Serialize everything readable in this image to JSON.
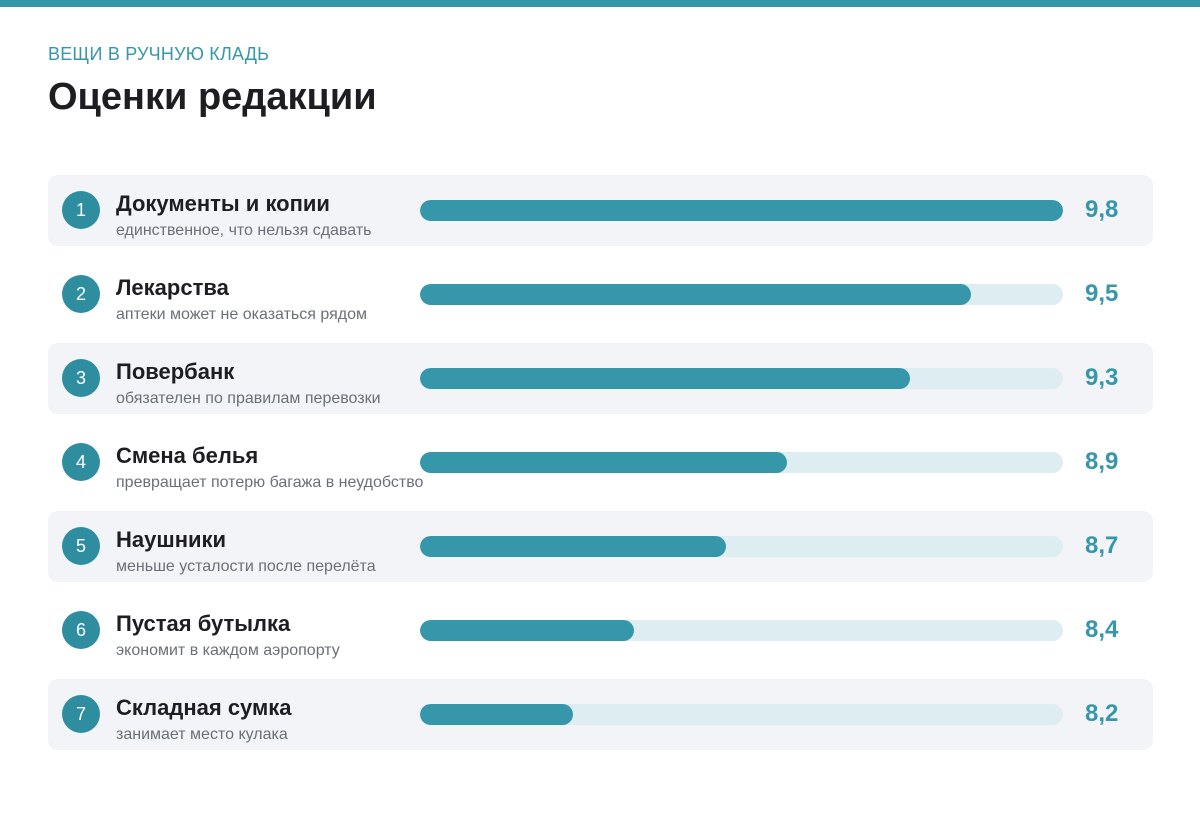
{
  "header": {
    "eyebrow": "ВЕЩИ В РУЧНУЮ КЛАДЬ",
    "title": "Оценки редакции"
  },
  "colors": {
    "accent": "#3597a9",
    "track": "#deedf1",
    "row_shade": "#f3f4f7",
    "badge": "#2e8ea0"
  },
  "chart_data": {
    "type": "bar",
    "orientation": "horizontal",
    "title": "Оценки редакции",
    "subtitle": "ВЕЩИ В РУЧНУЮ КЛАДЬ",
    "bar_scale_range": [
      7.7,
      9.8
    ],
    "categories": [
      "Документы и копии",
      "Лекарства",
      "Повербанк",
      "Смена белья",
      "Наушники",
      "Пустая бутылка",
      "Складная сумка"
    ],
    "values": [
      9.8,
      9.5,
      9.3,
      8.9,
      8.7,
      8.4,
      8.2
    ],
    "items": [
      {
        "rank": "1",
        "name": "Документы и копии",
        "note": "единственное, что нельзя сдавать",
        "score": 9.8,
        "score_label": "9,8"
      },
      {
        "rank": "2",
        "name": "Лекарства",
        "note": "аптеки может не оказаться рядом",
        "score": 9.5,
        "score_label": "9,5"
      },
      {
        "rank": "3",
        "name": "Повербанк",
        "note": "обязателен по правилам перевозки",
        "score": 9.3,
        "score_label": "9,3"
      },
      {
        "rank": "4",
        "name": "Смена белья",
        "note": "превращает потерю багажа в неудобство",
        "score": 8.9,
        "score_label": "8,9"
      },
      {
        "rank": "5",
        "name": "Наушники",
        "note": "меньше усталости после перелёта",
        "score": 8.7,
        "score_label": "8,7"
      },
      {
        "rank": "6",
        "name": "Пустая бутылка",
        "note": "экономит в каждом аэропорту",
        "score": 8.4,
        "score_label": "8,4"
      },
      {
        "rank": "7",
        "name": "Складная сумка",
        "note": "занимает место кулака",
        "score": 8.2,
        "score_label": "8,2"
      }
    ]
  }
}
